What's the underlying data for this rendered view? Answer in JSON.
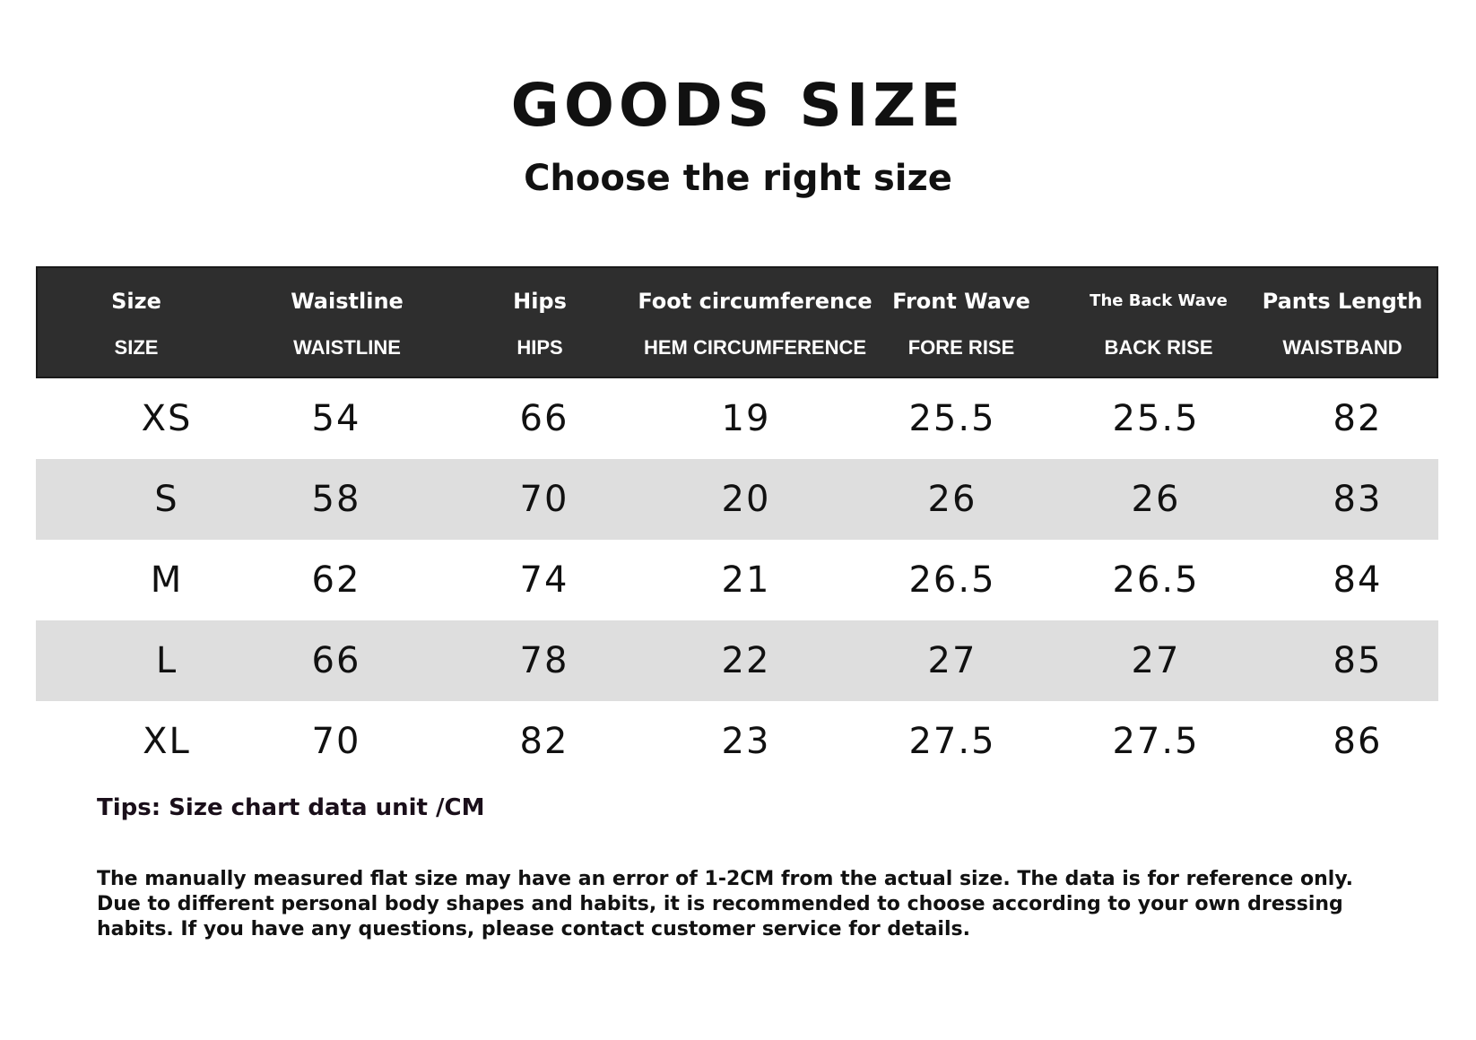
{
  "header": {
    "title": "GOODS SIZE",
    "subtitle": "Choose the right size"
  },
  "table": {
    "columns": [
      {
        "name": "Size",
        "code": "SIZE"
      },
      {
        "name": "Waistline",
        "code": "WAISTLINE"
      },
      {
        "name": "Hips",
        "code": "HIPS"
      },
      {
        "name": "Foot circumference",
        "code": "HEM CIRCUMFERENCE"
      },
      {
        "name": "Front Wave",
        "code": "FORE RISE"
      },
      {
        "name": "The Back Wave",
        "code": "BACK RISE"
      },
      {
        "name": "Pants Length",
        "code": "WAISTBAND"
      }
    ],
    "rows": [
      [
        "XS",
        "54",
        "66",
        "19",
        "25.5",
        "25.5",
        "82"
      ],
      [
        "S",
        "58",
        "70",
        "20",
        "26",
        "26",
        "83"
      ],
      [
        "M",
        "62",
        "74",
        "21",
        "26.5",
        "26.5",
        "84"
      ],
      [
        "L",
        "66",
        "78",
        "22",
        "27",
        "27",
        "85"
      ],
      [
        "XL",
        "70",
        "82",
        "23",
        "27.5",
        "27.5",
        "86"
      ]
    ]
  },
  "footer": {
    "tips": "Tips: Size chart data unit /CM",
    "note": "The manually measured flat size may have an error of 1-2CM from the actual size. The data is for reference only. Due to different personal body shapes and habits, it is recommended to choose according to your own dressing habits. If you have any questions, please contact customer service for details."
  }
}
